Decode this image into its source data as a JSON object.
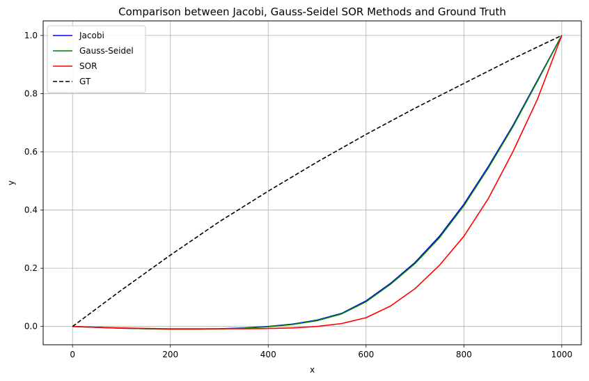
{
  "chart_data": {
    "type": "line",
    "title": "Comparison between Jacobi, Gauss-Seidel SOR Methods and Ground Truth",
    "xlabel": "x",
    "ylabel": "y",
    "xlim": [
      -60,
      1040
    ],
    "ylim": [
      -0.063,
      1.05
    ],
    "x_ticks": [
      0,
      200,
      400,
      600,
      800,
      1000
    ],
    "y_ticks": [
      0.0,
      0.2,
      0.4,
      0.6,
      0.8,
      1.0
    ],
    "x_tick_labels": [
      "0",
      "200",
      "400",
      "600",
      "800",
      "1000"
    ],
    "y_tick_labels": [
      "0.0",
      "0.2",
      "0.4",
      "0.6",
      "0.8",
      "1.0"
    ],
    "grid": true,
    "legend_position": "upper-left",
    "series": [
      {
        "name": "Jacobi",
        "color": "#0000ff",
        "dash": "solid",
        "x": [
          0,
          50,
          100,
          150,
          200,
          250,
          300,
          350,
          400,
          450,
          500,
          550,
          600,
          650,
          700,
          750,
          800,
          850,
          900,
          950,
          1000
        ],
        "y": [
          0.0,
          -0.003,
          -0.006,
          -0.008,
          -0.009,
          -0.009,
          -0.008,
          -0.005,
          0.0,
          0.008,
          0.022,
          0.045,
          0.088,
          0.148,
          0.22,
          0.31,
          0.42,
          0.55,
          0.69,
          0.845,
          1.0
        ]
      },
      {
        "name": "Gauss-Seidel",
        "color": "#008000",
        "dash": "solid",
        "x": [
          0,
          50,
          100,
          150,
          200,
          250,
          300,
          350,
          400,
          450,
          500,
          550,
          600,
          650,
          700,
          750,
          800,
          850,
          900,
          950,
          1000
        ],
        "y": [
          0.0,
          -0.003,
          -0.006,
          -0.008,
          -0.0095,
          -0.0095,
          -0.0085,
          -0.006,
          -0.001,
          0.007,
          0.02,
          0.043,
          0.085,
          0.145,
          0.216,
          0.305,
          0.415,
          0.545,
          0.686,
          0.842,
          1.0
        ]
      },
      {
        "name": "SOR",
        "color": "#ff0000",
        "dash": "solid",
        "x": [
          0,
          50,
          100,
          150,
          200,
          250,
          300,
          350,
          400,
          450,
          500,
          550,
          600,
          650,
          700,
          750,
          800,
          850,
          900,
          950,
          1000
        ],
        "y": [
          0.0,
          -0.003,
          -0.005,
          -0.007,
          -0.008,
          -0.008,
          -0.008,
          -0.008,
          -0.007,
          -0.005,
          0.0,
          0.01,
          0.03,
          0.07,
          0.13,
          0.21,
          0.31,
          0.44,
          0.6,
          0.78,
          1.0
        ]
      },
      {
        "name": "GT",
        "color": "#000000",
        "dash": "dashed",
        "x": [
          0,
          100,
          200,
          300,
          400,
          500,
          600,
          700,
          800,
          900,
          1000
        ],
        "y": [
          0.0,
          0.125,
          0.245,
          0.36,
          0.465,
          0.565,
          0.66,
          0.75,
          0.835,
          0.92,
          1.0
        ]
      }
    ]
  }
}
